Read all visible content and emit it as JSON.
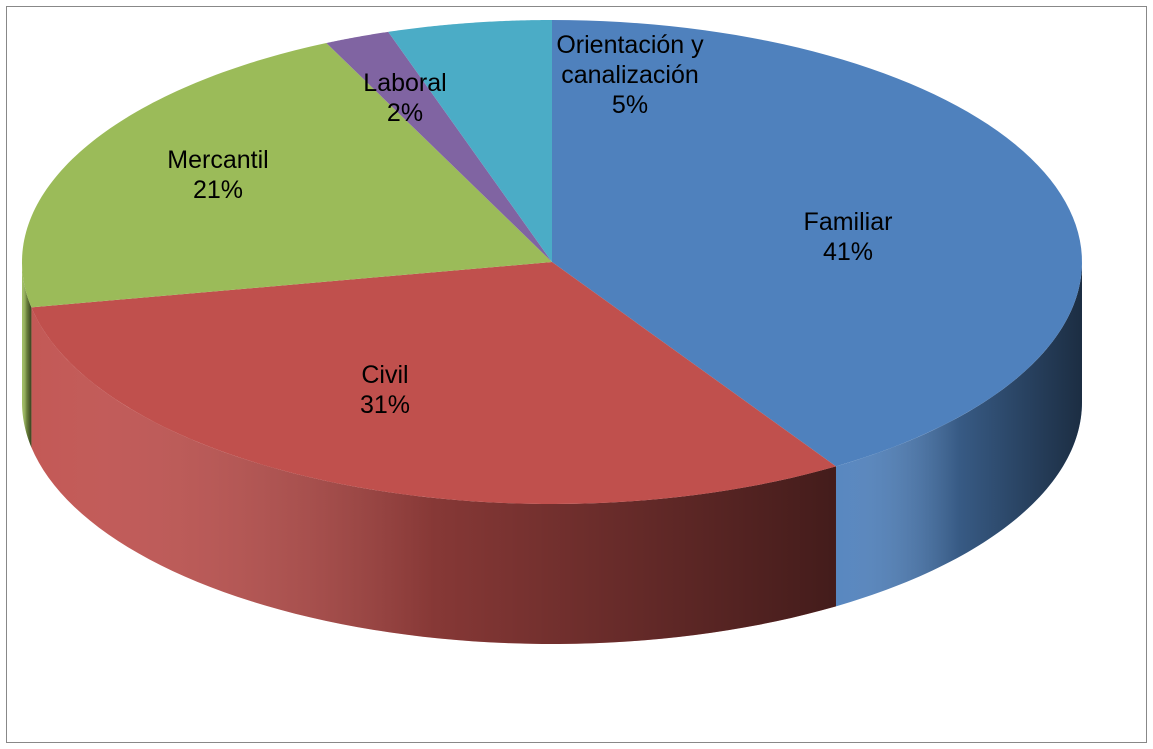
{
  "chart_data": {
    "type": "pie3d",
    "categories": [
      "Familiar",
      "Civil",
      "Mercantil",
      "Laboral",
      "Orientación y canalización"
    ],
    "values": [
      41,
      31,
      21,
      2,
      5
    ],
    "value_labels": [
      "41%",
      "31%",
      "21%",
      "2%",
      "5%"
    ],
    "colors": [
      "#4f81bd",
      "#c0504d",
      "#9bbb59",
      "#8064a2",
      "#4bacc6"
    ]
  }
}
